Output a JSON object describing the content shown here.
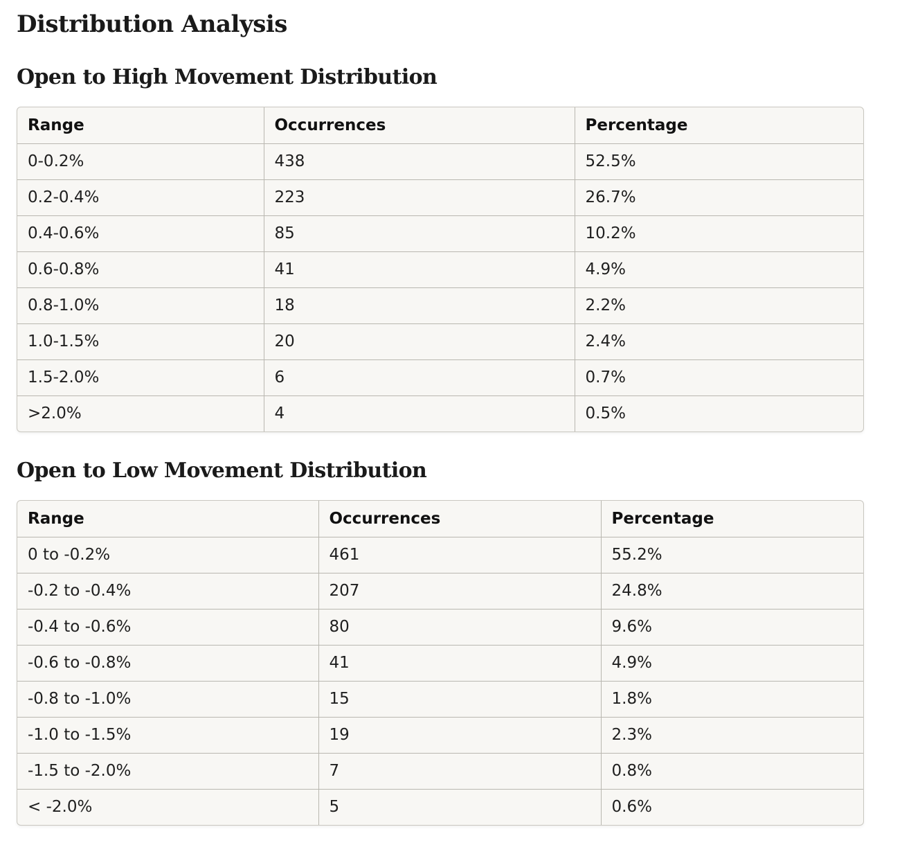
{
  "title": "Distribution Analysis",
  "sections": [
    {
      "heading": "Open to High Movement Distribution",
      "columns": [
        "Range",
        "Occurrences",
        "Percentage"
      ],
      "rows": [
        [
          "0-0.2%",
          "438",
          "52.5%"
        ],
        [
          "0.2-0.4%",
          "223",
          "26.7%"
        ],
        [
          "0.4-0.6%",
          "85",
          "10.2%"
        ],
        [
          "0.6-0.8%",
          "41",
          "4.9%"
        ],
        [
          "0.8-1.0%",
          "18",
          "2.2%"
        ],
        [
          "1.0-1.5%",
          "20",
          "2.4%"
        ],
        [
          "1.5-2.0%",
          "6",
          "0.7%"
        ],
        [
          ">2.0%",
          "4",
          "0.5%"
        ]
      ]
    },
    {
      "heading": "Open to Low Movement Distribution",
      "columns": [
        "Range",
        "Occurrences",
        "Percentage"
      ],
      "rows": [
        [
          "0 to -0.2%",
          "461",
          "55.2%"
        ],
        [
          "-0.2 to -0.4%",
          "207",
          "24.8%"
        ],
        [
          "-0.4 to -0.6%",
          "80",
          "9.6%"
        ],
        [
          "-0.6 to -0.8%",
          "41",
          "4.9%"
        ],
        [
          "-0.8 to -1.0%",
          "15",
          "1.8%"
        ],
        [
          "-1.0 to -1.5%",
          "19",
          "2.3%"
        ],
        [
          "-1.5 to -2.0%",
          "7",
          "0.8%"
        ],
        [
          "< -2.0%",
          "5",
          "0.6%"
        ]
      ]
    }
  ],
  "colors": {
    "table_background": "#f8f7f4",
    "border": "#b9b7b0",
    "text": "#1a1a1a"
  }
}
